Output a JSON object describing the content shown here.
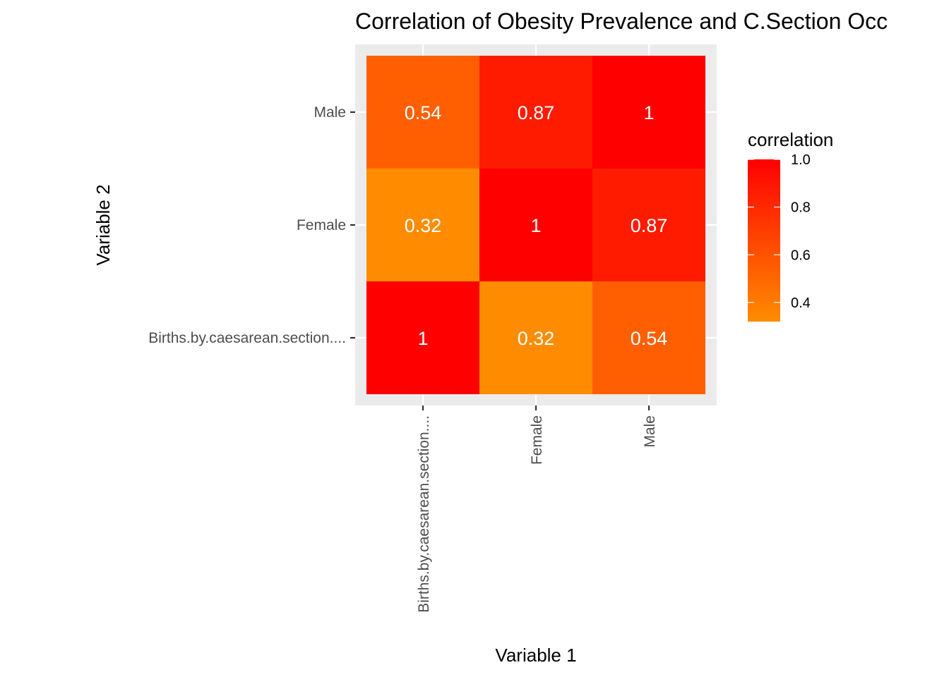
{
  "chart_data": {
    "type": "heatmap",
    "title": "Correlation of Obesity Prevalence and C.Section Occ",
    "xlabel": "Variable 1",
    "ylabel": "Variable 2",
    "x_categories": [
      "Births.by.caesarean.section....",
      "Female",
      "Male"
    ],
    "y_categories": [
      "Births.by.caesarean.section....",
      "Female",
      "Male"
    ],
    "cells": [
      {
        "x": "Births.by.caesarean.section....",
        "y": "Births.by.caesarean.section....",
        "value": 1,
        "label": "1"
      },
      {
        "x": "Female",
        "y": "Births.by.caesarean.section....",
        "value": 0.32,
        "label": "0.32"
      },
      {
        "x": "Male",
        "y": "Births.by.caesarean.section....",
        "value": 0.54,
        "label": "0.54"
      },
      {
        "x": "Births.by.caesarean.section....",
        "y": "Female",
        "value": 0.32,
        "label": "0.32"
      },
      {
        "x": "Female",
        "y": "Female",
        "value": 1,
        "label": "1"
      },
      {
        "x": "Male",
        "y": "Female",
        "value": 0.87,
        "label": "0.87"
      },
      {
        "x": "Births.by.caesarean.section....",
        "y": "Male",
        "value": 0.54,
        "label": "0.54"
      },
      {
        "x": "Female",
        "y": "Male",
        "value": 0.87,
        "label": "0.87"
      },
      {
        "x": "Male",
        "y": "Male",
        "value": 1,
        "label": "1"
      }
    ],
    "legend": {
      "title": "correlation",
      "placement": "right",
      "range": [
        0.32,
        1.0
      ],
      "ticks": [
        {
          "value": 1.0,
          "label": "1.0"
        },
        {
          "value": 0.8,
          "label": "0.8"
        },
        {
          "value": 0.6,
          "label": "0.6"
        },
        {
          "value": 0.4,
          "label": "0.4"
        }
      ],
      "low_color": "#ff8c00",
      "high_color": "#ff0000"
    },
    "grid": true,
    "panel_background": "#ebebeb",
    "grid_color": "#ffffff"
  }
}
